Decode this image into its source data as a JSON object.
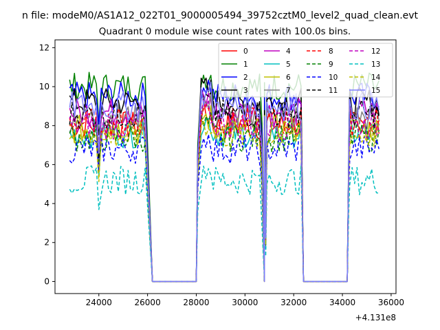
{
  "figure": {
    "suptitle": "n file: modeM0/AS1A12_022T01_9000005494_39752cztM0_level2_quad_clean.evt"
  },
  "chart_data": {
    "type": "line",
    "title": "Quadrant 0 module wise count rates with 100.0s bins.",
    "xlabel": "",
    "ylabel": "",
    "x_offset_label": "+4.131e8",
    "xlim": [
      22200,
      36200
    ],
    "ylim": [
      -0.62,
      12.4
    ],
    "x_ticks": [
      24000,
      26000,
      28000,
      30000,
      32000,
      34000,
      36000
    ],
    "x_tick_labels": [
      "24000",
      "26000",
      "28000",
      "30000",
      "32000",
      "34000",
      "36000"
    ],
    "y_ticks": [
      0,
      2,
      4,
      6,
      8,
      10,
      12
    ],
    "y_tick_labels": [
      "0",
      "2",
      "4",
      "6",
      "8",
      "10",
      "12"
    ],
    "grid": false,
    "legend": {
      "placement": "top-right",
      "columns": 4
    },
    "time_segments": [
      {
        "x_start": 22800,
        "x_end": 25900,
        "rise_x": null,
        "fall_x": 26200
      },
      {
        "x_start": 28200,
        "x_end": 30700,
        "rise_x": 28000,
        "fall_x": 30800
      },
      {
        "x_start": 30800,
        "x_end": 32300,
        "rise_x": null,
        "fall_x": 32400
      },
      {
        "x_start": 34300,
        "x_end": 35500,
        "rise_x": 34200,
        "fall_x": null
      }
    ],
    "bin_width": 100,
    "gaps_zero": [
      [
        26200,
        28000
      ],
      [
        32400,
        34200
      ]
    ],
    "series": [
      {
        "name": "0",
        "color": "#ff0000",
        "dash": "solid",
        "level": 8.0
      },
      {
        "name": "1",
        "color": "#008000",
        "dash": "solid",
        "level": 10.0
      },
      {
        "name": "2",
        "color": "#0000ff",
        "dash": "solid",
        "level": 9.5
      },
      {
        "name": "3",
        "color": "#000000",
        "dash": "solid",
        "level": 9.2
      },
      {
        "name": "4",
        "color": "#bf00bf",
        "dash": "solid",
        "level": 8.7
      },
      {
        "name": "5",
        "color": "#00bfbf",
        "dash": "solid",
        "level": 7.6
      },
      {
        "name": "6",
        "color": "#bfbf00",
        "dash": "solid",
        "level": 7.8
      },
      {
        "name": "7",
        "color": "#808080",
        "dash": "solid",
        "level": 8.4
      },
      {
        "name": "8",
        "color": "#ff0000",
        "dash": "dashed",
        "level": 8.2
      },
      {
        "name": "9",
        "color": "#008000",
        "dash": "dashed",
        "level": 7.4
      },
      {
        "name": "10",
        "color": "#0000ff",
        "dash": "dashed",
        "level": 6.8
      },
      {
        "name": "11",
        "color": "#000000",
        "dash": "dashed",
        "level": 8.6
      },
      {
        "name": "12",
        "color": "#bf00bf",
        "dash": "dashed",
        "level": 8.0
      },
      {
        "name": "13",
        "color": "#00bfbf",
        "dash": "dashed",
        "level": 5.2
      },
      {
        "name": "14",
        "color": "#bfbf00",
        "dash": "dashed",
        "level": 7.5
      },
      {
        "name": "15",
        "color": "#7f7fff",
        "dash": "solid",
        "level": 9.0
      }
    ]
  }
}
